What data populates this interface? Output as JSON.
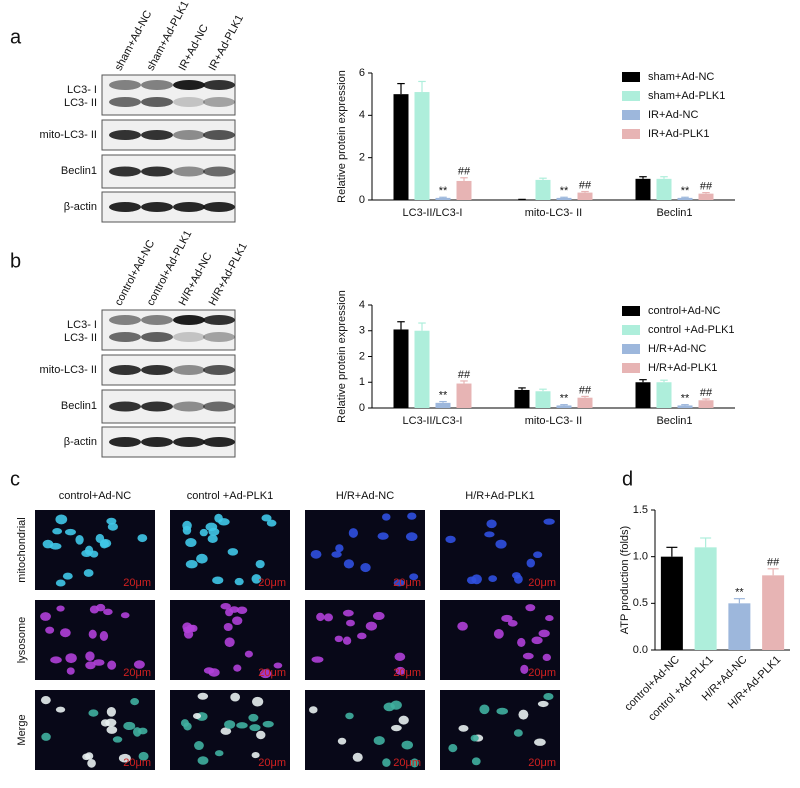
{
  "panels": [
    "a",
    "b",
    "c",
    "d"
  ],
  "blot_a": {
    "lanes": [
      "sham+Ad-NC",
      "sham+Ad-PLK1",
      "IR+Ad-NC",
      "IR+Ad-PLK1"
    ],
    "rows": [
      "LC3- I",
      "LC3- II",
      "mito-LC3- II",
      "Beclin1",
      "β-actin"
    ]
  },
  "blot_b": {
    "lanes": [
      "control+Ad-NC",
      "control+Ad-PLK1",
      "H/R+Ad-NC",
      "H/R+Ad-PLK1"
    ],
    "rows": [
      "LC3- I",
      "LC3- II",
      "mito-LC3- II",
      "Beclin1",
      "β-actin"
    ]
  },
  "micro": {
    "columns": [
      "control+Ad-NC",
      "control +Ad-PLK1",
      "H/R+Ad-NC",
      "H/R+Ad-PLK1"
    ],
    "rows": [
      "mitochondrial",
      "lysosome",
      "Merge"
    ],
    "scale_label": "20μm"
  },
  "chart_data": [
    {
      "type": "bar",
      "ylabel": "Relative protein expression",
      "categories": [
        "LC3-II/LC3-I",
        "mito-LC3- II",
        "Beclin1"
      ],
      "ylim": [
        0,
        6
      ],
      "yticks": [
        0,
        2,
        4,
        6
      ],
      "grid": false,
      "legend": "top-right",
      "series": [
        {
          "name": "sham+Ad-NC",
          "color": "#000000",
          "values": [
            5.0,
            0.02,
            1.0
          ],
          "errors": [
            0.5,
            0.01,
            0.1
          ],
          "marks": [
            null,
            null,
            null
          ]
        },
        {
          "name": "sham+Ad-PLK1",
          "color": "#aeeedb",
          "values": [
            5.1,
            0.95,
            1.0
          ],
          "errors": [
            0.5,
            0.08,
            0.1
          ],
          "marks": [
            null,
            null,
            null
          ]
        },
        {
          "name": "IR+Ad-NC",
          "color": "#9db7dc",
          "values": [
            0.1,
            0.1,
            0.1
          ],
          "errors": [
            0.03,
            0.03,
            0.03
          ],
          "marks": [
            "**",
            "**",
            "**"
          ]
        },
        {
          "name": "IR+Ad-PLK1",
          "color": "#e7b4b4",
          "values": [
            0.9,
            0.35,
            0.3
          ],
          "errors": [
            0.15,
            0.05,
            0.05
          ],
          "marks": [
            "##",
            "##",
            "##"
          ]
        }
      ]
    },
    {
      "type": "bar",
      "ylabel": "Relative protein expression",
      "categories": [
        "LC3-II/LC3-I",
        "mito-LC3- II",
        "Beclin1"
      ],
      "ylim": [
        0,
        4
      ],
      "yticks": [
        0,
        1,
        2,
        3,
        4
      ],
      "grid": false,
      "legend": "top-right",
      "series": [
        {
          "name": "control+Ad-NC",
          "color": "#000000",
          "values": [
            3.05,
            0.7,
            1.0
          ],
          "errors": [
            0.3,
            0.08,
            0.1
          ],
          "marks": [
            null,
            null,
            null
          ]
        },
        {
          "name": "control +Ad-PLK1",
          "color": "#aeeedb",
          "values": [
            3.0,
            0.65,
            1.0
          ],
          "errors": [
            0.3,
            0.08,
            0.08
          ],
          "marks": [
            null,
            null,
            null
          ]
        },
        {
          "name": "H/R+Ad-NC",
          "color": "#9db7dc",
          "values": [
            0.2,
            0.1,
            0.1
          ],
          "errors": [
            0.05,
            0.03,
            0.03
          ],
          "marks": [
            "**",
            "**",
            "**"
          ]
        },
        {
          "name": "H/R+Ad-PLK1",
          "color": "#e7b4b4",
          "values": [
            0.95,
            0.4,
            0.3
          ],
          "errors": [
            0.1,
            0.05,
            0.05
          ],
          "marks": [
            "##",
            "##",
            "##"
          ]
        }
      ]
    },
    {
      "type": "bar",
      "ylabel": "ATP production (folds)",
      "categories": [
        "control+Ad-NC",
        "control +Ad-PLK1",
        "H/R+Ad-NC",
        "H/R+Ad-PLK1"
      ],
      "ylim": [
        0,
        1.5
      ],
      "yticks": [
        {
          "value": 0,
          "label": "0.0"
        },
        {
          "value": 0.5,
          "label": "0.5"
        },
        {
          "value": 1,
          "label": "1.0"
        },
        {
          "value": 1.5,
          "label": "1.5"
        }
      ],
      "grid": false,
      "values": [
        1.0,
        1.1,
        0.5,
        0.8
      ],
      "errors": [
        0.1,
        0.1,
        0.05,
        0.07
      ],
      "colors": [
        "#000000",
        "#aeeedb",
        "#9db7dc",
        "#e7b4b4"
      ],
      "value_marks": [
        null,
        null,
        "**",
        "##"
      ]
    }
  ]
}
